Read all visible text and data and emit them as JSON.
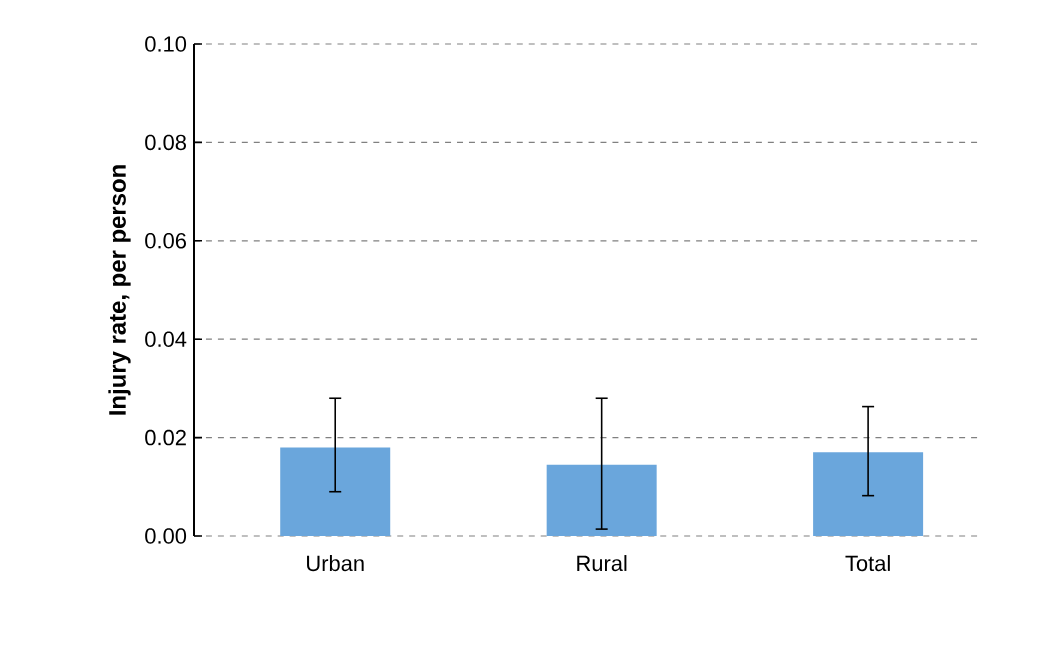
{
  "chart_data": {
    "type": "bar",
    "ylabel": "Injury rate, per person",
    "categories": [
      "Urban",
      "Rural",
      "Total"
    ],
    "values": [
      0.018,
      0.0145,
      0.017
    ],
    "errors": [
      [
        0.009,
        0.028
      ],
      [
        0.0014,
        0.028
      ],
      [
        0.0082,
        0.0263
      ]
    ],
    "color": "#6aa6dc",
    "ylim": [
      0,
      0.1
    ],
    "yticks": [
      {
        "value": 0,
        "label": "0.00"
      },
      {
        "value": 0.02,
        "label": "0.02"
      },
      {
        "value": 0.04,
        "label": "0.04"
      },
      {
        "value": 0.06,
        "label": "0.06"
      },
      {
        "value": 0.08,
        "label": "0.08"
      },
      {
        "value": 0.1,
        "label": "0.10"
      }
    ],
    "grid": "y"
  }
}
